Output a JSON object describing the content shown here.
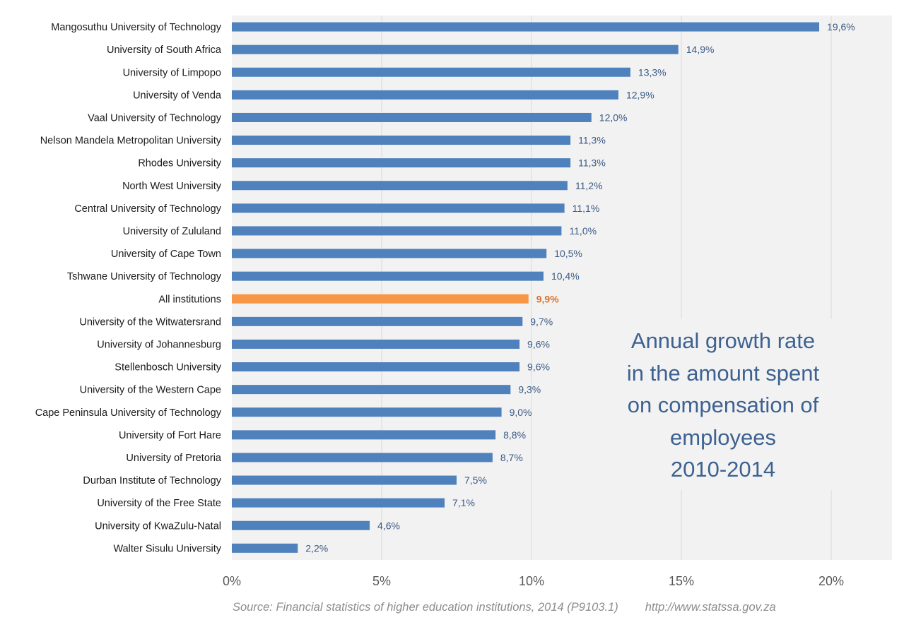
{
  "chart_data": {
    "type": "bar",
    "orientation": "horizontal",
    "title": "Annual growth rate in the amount spent on compensation of employees 2010-2014",
    "title_lines": [
      "Annual growth rate",
      "in the amount spent",
      "on compensation of",
      "employees",
      "2010-2014"
    ],
    "xlabel": "",
    "ylabel": "",
    "xlim": [
      0,
      22
    ],
    "x_ticks": [
      0,
      5,
      10,
      15,
      20
    ],
    "x_tick_labels": [
      "0%",
      "5%",
      "10%",
      "15%",
      "20%"
    ],
    "grid": "vertical",
    "categories": [
      "Mangosuthu University of Technology",
      "University of South Africa",
      "University of Limpopo",
      "University of Venda",
      "Vaal University of Technology",
      "Nelson Mandela Metropolitan University",
      "Rhodes University",
      "North West University",
      "Central University of Technology",
      "University of Zululand",
      "University of Cape Town",
      "Tshwane University of Technology",
      "All institutions",
      "University of the Witwatersrand",
      "University of Johannesburg",
      "Stellenbosch University",
      "University of the Western Cape",
      "Cape Peninsula University of Technology",
      "University of Fort Hare",
      "University of Pretoria",
      "Durban Institute of Technology",
      "University of the Free State",
      "University of KwaZulu-Natal",
      "Walter Sisulu University"
    ],
    "values": [
      19.6,
      14.9,
      13.3,
      12.9,
      12.0,
      11.3,
      11.3,
      11.2,
      11.1,
      11.0,
      10.5,
      10.4,
      9.9,
      9.7,
      9.6,
      9.6,
      9.3,
      9.0,
      8.8,
      8.7,
      7.5,
      7.1,
      4.6,
      2.2
    ],
    "value_labels": [
      "19,6%",
      "14,9%",
      "13,3%",
      "12,9%",
      "12,0%",
      "11,3%",
      "11,3%",
      "11,2%",
      "11,1%",
      "11,0%",
      "10,5%",
      "10,4%",
      "9,9%",
      "9,7%",
      "9,6%",
      "9,6%",
      "9,3%",
      "9,0%",
      "8,8%",
      "8,7%",
      "7,5%",
      "7,1%",
      "4,6%",
      "2,2%"
    ],
    "highlight_category": "All institutions",
    "colors": {
      "bar": "#4f81bd",
      "highlight": "#f79646",
      "highlight_label": "#d9702a",
      "value_label": "#3b5a85",
      "plot_bg": "#f2f2f2",
      "grid": "#d9d9d9",
      "title": "#3d6291"
    }
  },
  "footer": {
    "source": "Source: Financial statistics of higher education institutions, 2014 (P9103.1)",
    "url": "http://www.statssa.gov.za"
  }
}
